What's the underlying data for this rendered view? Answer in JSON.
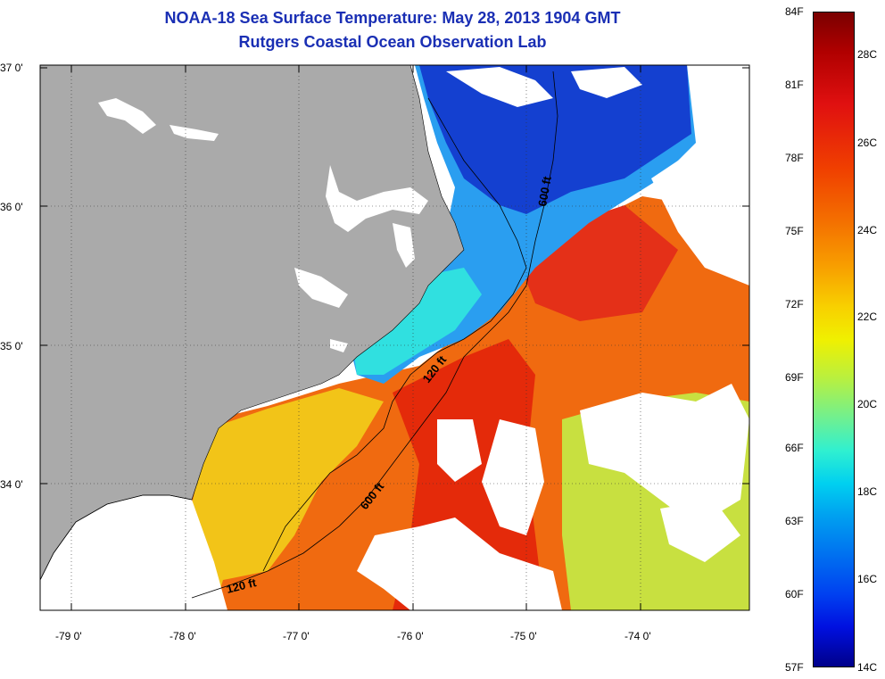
{
  "title": {
    "line1": "NOAA-18 Sea Surface Temperature:  May 28, 2013 1904 GMT",
    "line2": "Rutgers Coastal Ocean Observation Lab"
  },
  "axes": {
    "lat_labels": [
      "37 0'",
      "36 0'",
      "35 0'",
      "34 0'"
    ],
    "lon_labels": [
      "-79 0'",
      "-78 0'",
      "-77 0'",
      "-76 0'",
      "-75 0'",
      "-74 0'"
    ]
  },
  "isobaths": [
    {
      "label": "120 ft"
    },
    {
      "label": "120 ft"
    },
    {
      "label": "600 ft"
    },
    {
      "label": "600 ft"
    }
  ],
  "colorbar": {
    "fahrenheit": [
      "84F",
      "81F",
      "78F",
      "75F",
      "72F",
      "69F",
      "66F",
      "63F",
      "60F",
      "57F"
    ],
    "celsius": [
      "28C",
      "26C",
      "24C",
      "22C",
      "20C",
      "18C",
      "16C",
      "14C"
    ]
  },
  "colors": {
    "land": "#aaaaaa",
    "cloud": "#ffffff",
    "title": "#1a2fb4"
  }
}
